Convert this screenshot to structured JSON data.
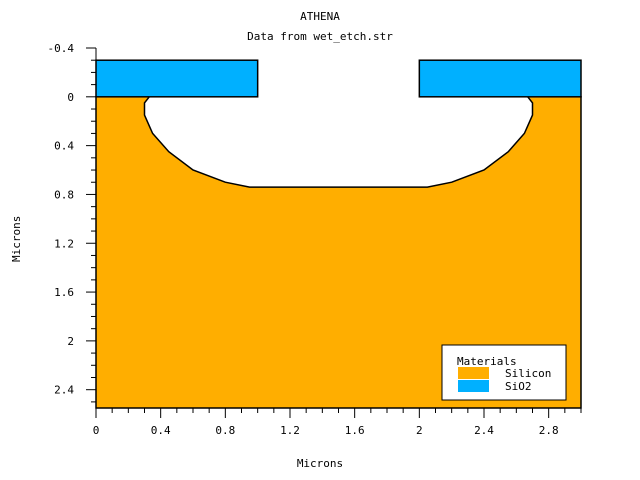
{
  "chart_data": {
    "type": "area",
    "title": "ATHENA",
    "subtitle": "Data from wet_etch.str",
    "xlabel": "Microns",
    "ylabel": "Microns",
    "xlim": [
      0,
      3
    ],
    "ylim": [
      2.55,
      -0.4
    ],
    "y_axis_inverted": true,
    "x_ticks": [
      0,
      0.4,
      0.8,
      1.2,
      1.6,
      2,
      2.4,
      2.8
    ],
    "x_tick_labels": [
      "0",
      "0.4",
      "0.8",
      "1.2",
      "1.6",
      "2",
      "2.4",
      "2.8"
    ],
    "y_ticks": [
      -0.4,
      0,
      0.4,
      0.8,
      1.2,
      1.6,
      2,
      2.4
    ],
    "y_tick_labels": [
      "-0.4",
      "0",
      "0.4",
      "0.8",
      "1.2",
      "1.6",
      "2",
      "2.4"
    ],
    "grid": false,
    "legend_placement": "bottom-right",
    "legend_title": "Materials",
    "series": [
      {
        "name": "Silicon",
        "color": "#FFAE00",
        "region": "substrate",
        "outline": [
          [
            0,
            0
          ],
          [
            0.33,
            0
          ],
          [
            0.3,
            0.05
          ],
          [
            0.3,
            0.15
          ],
          [
            0.35,
            0.3
          ],
          [
            0.45,
            0.45
          ],
          [
            0.6,
            0.6
          ],
          [
            0.8,
            0.7
          ],
          [
            0.95,
            0.74
          ],
          [
            2.05,
            0.74
          ],
          [
            2.2,
            0.7
          ],
          [
            2.4,
            0.6
          ],
          [
            2.55,
            0.45
          ],
          [
            2.65,
            0.3
          ],
          [
            2.7,
            0.15
          ],
          [
            2.7,
            0.05
          ],
          [
            2.67,
            0
          ],
          [
            3,
            0
          ],
          [
            3,
            2.55
          ],
          [
            0,
            2.55
          ]
        ]
      },
      {
        "name": "SiO2",
        "color": "#00B0FF",
        "region": "mask",
        "rects": [
          {
            "x0": 0,
            "x1": 1,
            "y0": -0.3,
            "y1": 0
          },
          {
            "x0": 2,
            "x1": 3,
            "y0": -0.3,
            "y1": 0
          }
        ]
      }
    ]
  }
}
